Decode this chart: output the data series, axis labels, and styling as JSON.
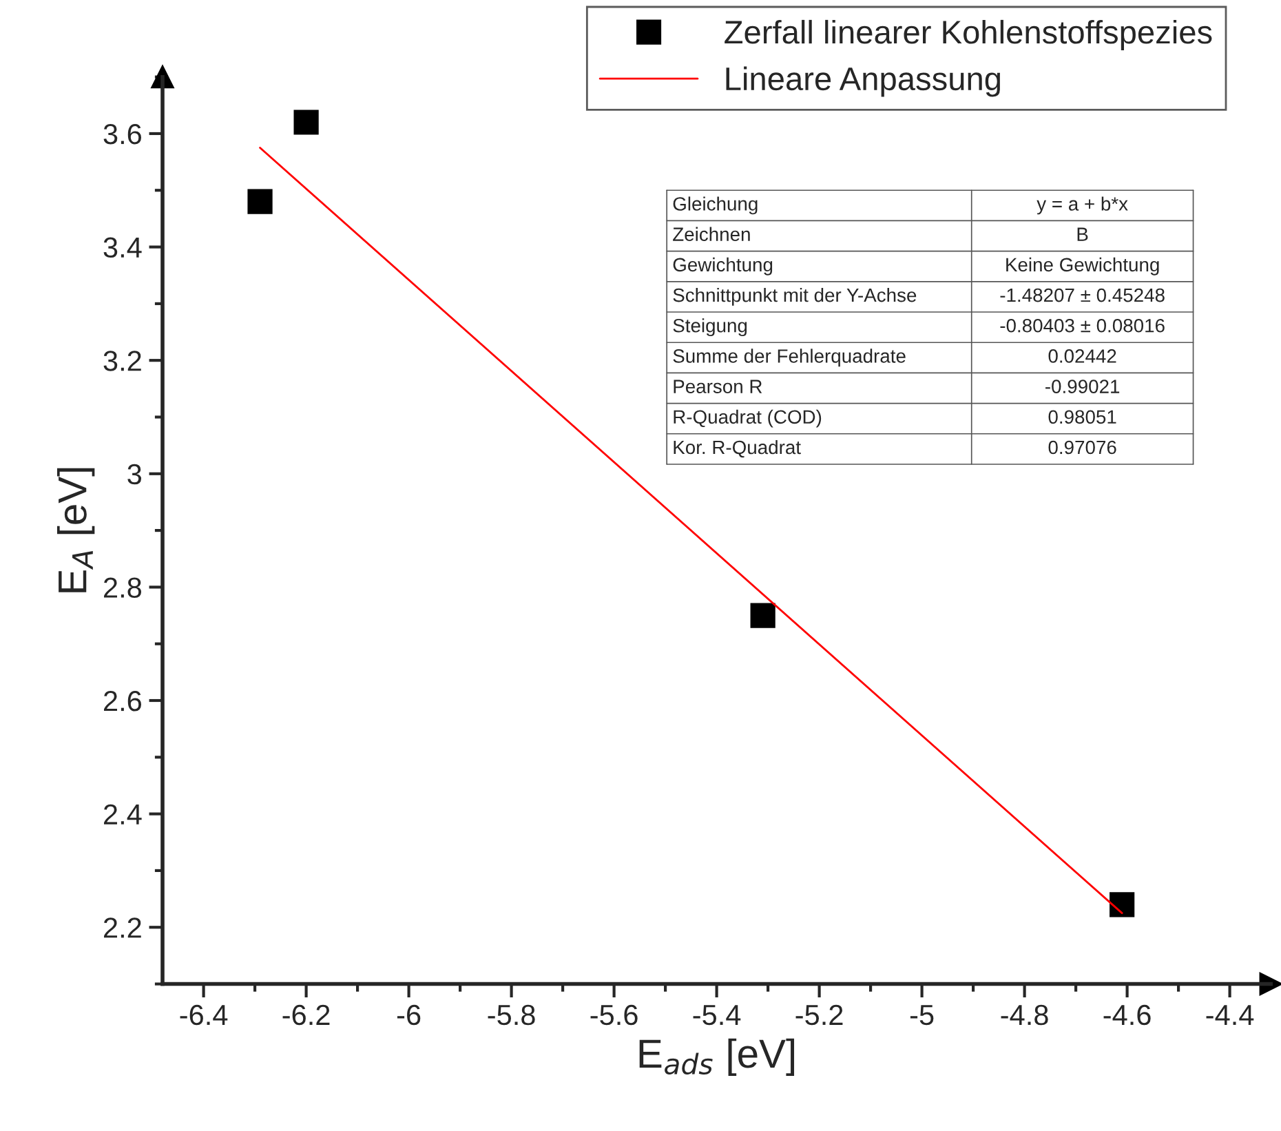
{
  "chart_data": {
    "type": "scatter",
    "xlabel": "E$_{ads}$ [eV]",
    "ylabel": "E$_{A}$ [eV]",
    "series": [
      {
        "name": "Zerfall linearer Kohlenstoffspezies",
        "color": "#000000",
        "marker": "square",
        "x": [
          -6.29,
          -6.2,
          -5.31,
          -4.61
        ],
        "values": [
          3.48,
          3.62,
          2.75,
          2.24
        ]
      },
      {
        "name": "Lineare Anpassung",
        "type": "line",
        "color": "#ff0000",
        "marker": "none",
        "line_style": "solid",
        "x": [
          -6.29,
          -4.61
        ],
        "values": [
          3.575,
          2.225
        ]
      }
    ],
    "xlim": [
      -6.48,
      -4.32
    ],
    "ylim": [
      2.1,
      3.7
    ],
    "xticks": [
      -6.4,
      -6.2,
      -6,
      -5.8,
      -5.6,
      -5.4,
      -5.2,
      -5,
      -4.8,
      -4.6,
      -4.4
    ],
    "yticks": [
      2.2,
      2.4,
      2.6,
      2.8,
      3,
      3.2,
      3.4,
      3.6
    ],
    "grid": false,
    "legend": "top right",
    "annotations": [
      "Gleichung",
      "y = a + b*x",
      "Zeichnen",
      "B",
      "Gewichtung",
      "Keine Gewichtung",
      "Schnittpunkt mit der Y-Achse",
      "-1.48207 ± 0.45248",
      "Steigung",
      "-0.80403 ± 0.08016",
      "Summe der Fehlerquadrate",
      "0.02442",
      "Pearson R",
      "-0.99021",
      "R-Quadrat (COD)",
      "0.98051",
      "Kor. R-Quadrat",
      "0.97076"
    ]
  }
}
